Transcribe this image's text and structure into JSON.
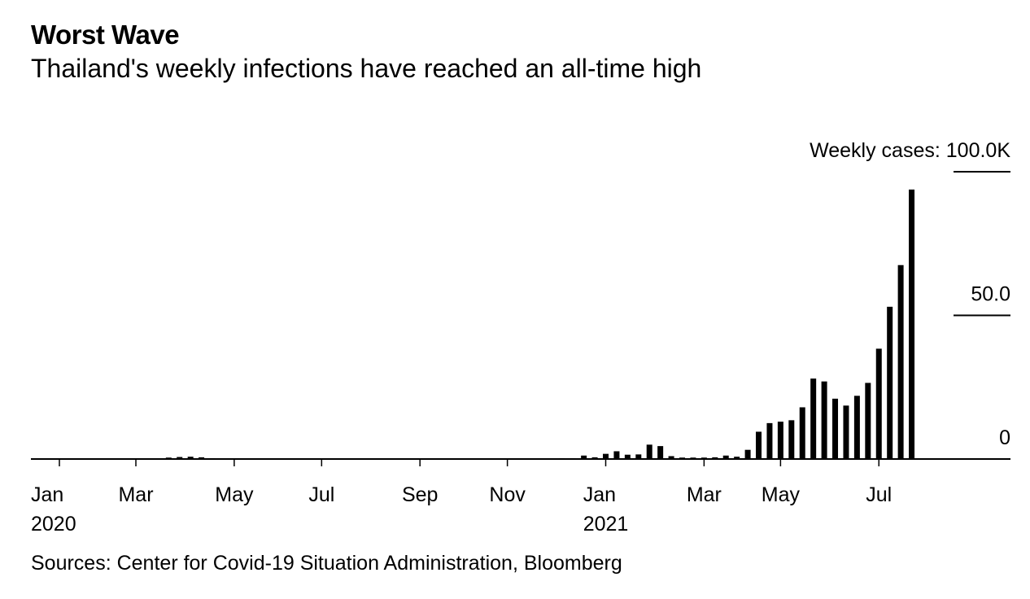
{
  "chart_data": {
    "type": "bar",
    "title": "Worst Wave",
    "subtitle": "Thailand's weekly infections have reached an all-time high",
    "source": "Sources: Center for Covid-19 Situation Administration, Bloomberg",
    "color": "#000000",
    "categories": [
      "Jan\n2020",
      null,
      null,
      null,
      null,
      null,
      null,
      "Mar",
      null,
      null,
      null,
      null,
      null,
      null,
      null,
      null,
      "May",
      null,
      null,
      null,
      null,
      null,
      null,
      null,
      "Jul",
      null,
      null,
      null,
      null,
      null,
      null,
      null,
      null,
      "Sep",
      null,
      null,
      null,
      null,
      null,
      null,
      null,
      "Nov",
      null,
      null,
      null,
      null,
      null,
      null,
      null,
      null,
      "Jan\n2021",
      null,
      null,
      null,
      null,
      null,
      null,
      null,
      null,
      "Mar",
      null,
      null,
      null,
      null,
      null,
      null,
      "May",
      null,
      null,
      null,
      null,
      null,
      null,
      null,
      null,
      "Jul",
      null,
      null,
      null
    ],
    "values": [
      0,
      0.01,
      0.02,
      0.02,
      0.02,
      0.02,
      0.02,
      0.03,
      0.05,
      0.2,
      0.5,
      0.7,
      0.8,
      0.6,
      0.3,
      0.1,
      0.05,
      0.03,
      0.02,
      0.02,
      0.02,
      0.02,
      0.02,
      0.02,
      0.02,
      0.02,
      0.02,
      0.02,
      0.02,
      0.02,
      0.02,
      0.02,
      0.02,
      0.02,
      0.02,
      0.02,
      0.02,
      0.02,
      0.02,
      0.02,
      0.02,
      0.02,
      0.03,
      0.03,
      0.03,
      0.05,
      0.3,
      0.3,
      1.2,
      0.6,
      1.8,
      2.7,
      1.5,
      1.6,
      5.0,
      4.5,
      1.0,
      0.5,
      0.5,
      0.5,
      0.6,
      1.2,
      0.8,
      3.2,
      9.5,
      12.5,
      13,
      13.5,
      18,
      28,
      27,
      21,
      18.6,
      22,
      26.5,
      38.4,
      53,
      67.5,
      93.8
    ],
    "ylim": [
      0,
      100
    ],
    "yticks": [
      0,
      {
        "value": 50,
        "label": "50.0"
      },
      {
        "value": 100,
        "label": "Weekly cases: 100.0K"
      }
    ],
    "grid": true
  }
}
